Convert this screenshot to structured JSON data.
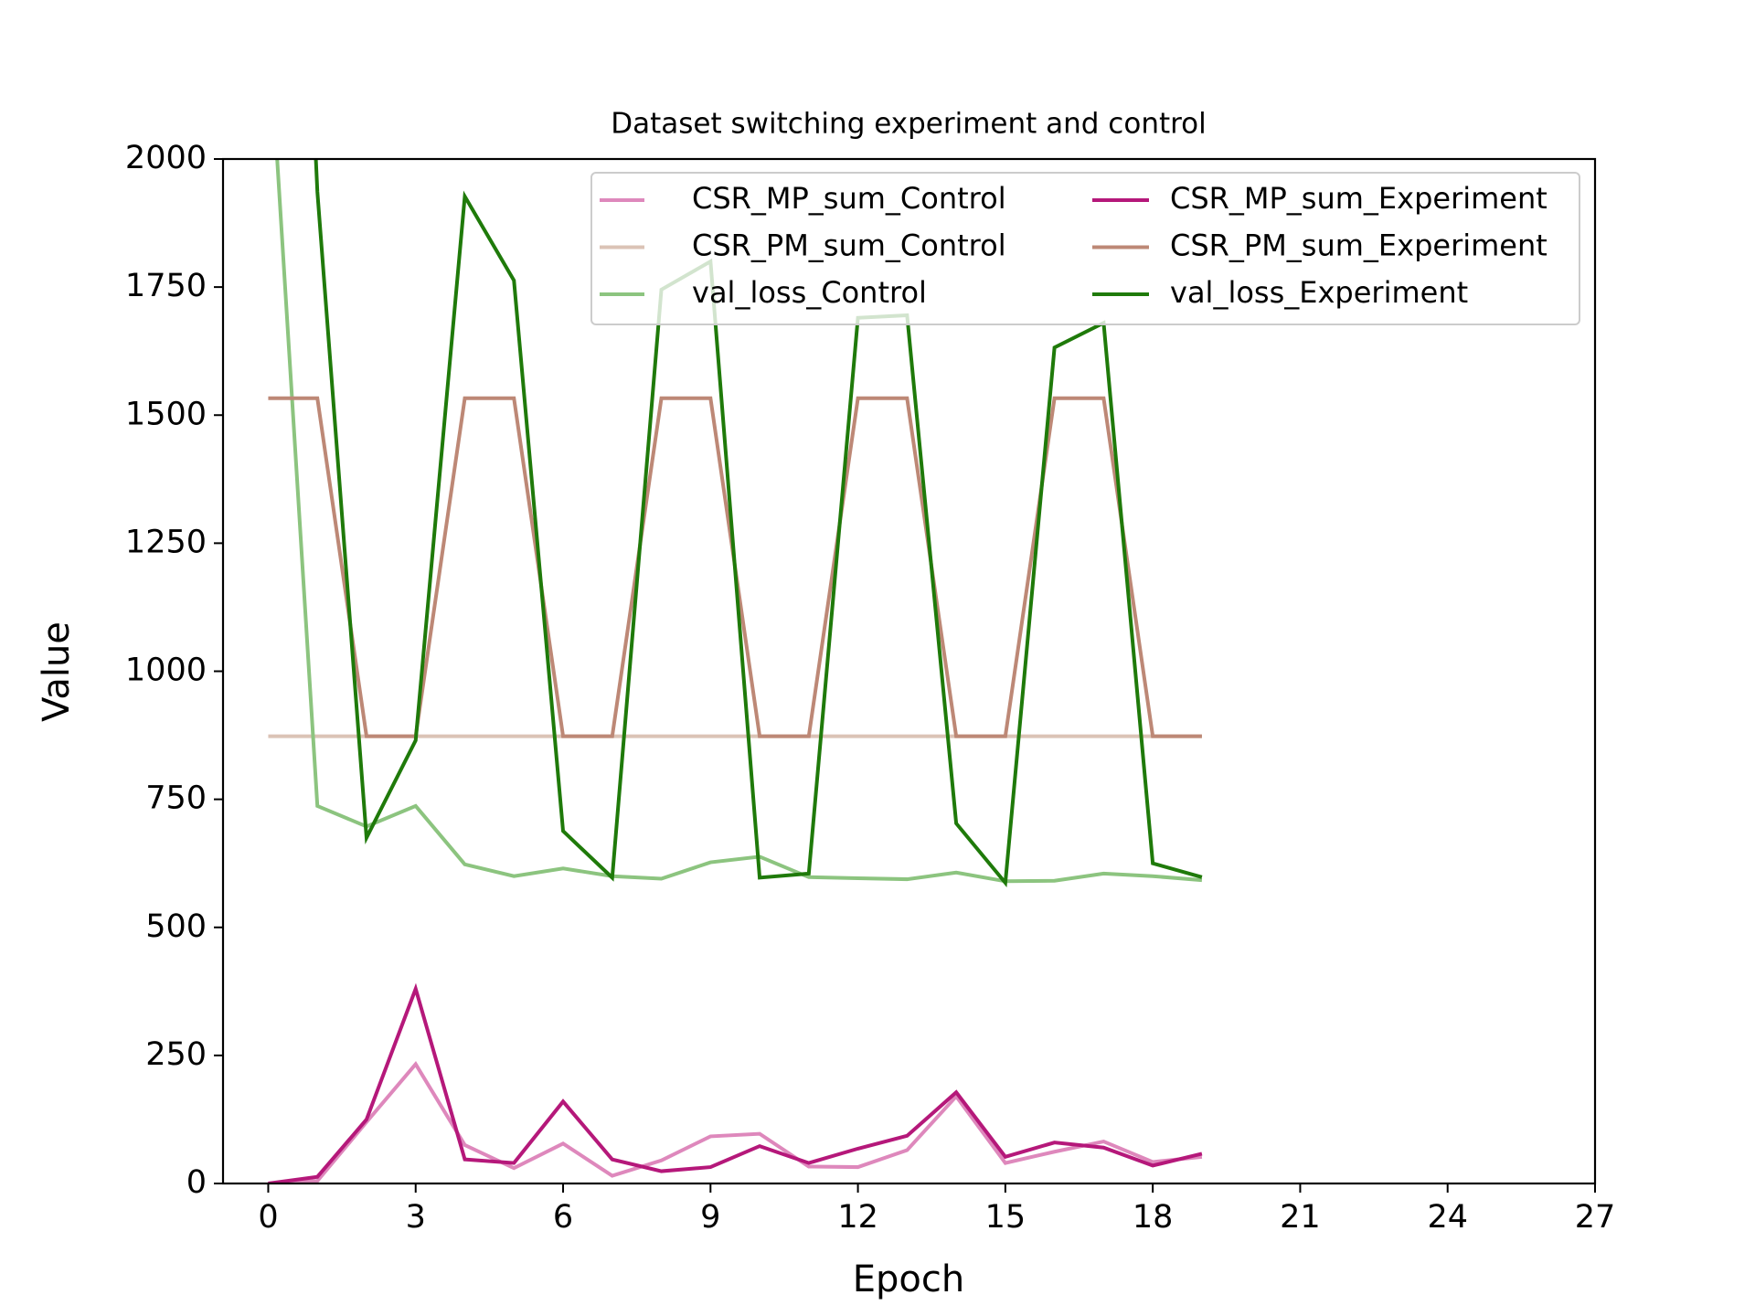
{
  "chart_data": {
    "type": "line",
    "title": "Dataset switching experiment and control",
    "x_label": "Epoch",
    "y_label": "Value",
    "x": [
      0,
      1,
      2,
      3,
      4,
      5,
      6,
      7,
      8,
      9,
      10,
      11,
      12,
      13,
      14,
      15,
      16,
      17,
      18,
      19
    ],
    "series": [
      {
        "name": "CSR_MP_sum_Control",
        "color": "#de88bc",
        "values": [
          0,
          5,
          120,
          233,
          75,
          30,
          78,
          15,
          45,
          92,
          97,
          33,
          32,
          65,
          170,
          40,
          62,
          82,
          42,
          52
        ]
      },
      {
        "name": "CSR_PM_sum_Control",
        "color": "#dbc3b6",
        "values": [
          873,
          873,
          873,
          873,
          873,
          873,
          873,
          873,
          873,
          873,
          873,
          873,
          873,
          873,
          873,
          873,
          873,
          873,
          873,
          873
        ]
      },
      {
        "name": "val_loss_Control",
        "color": "#8cc47f",
        "values": [
          2280,
          737,
          697,
          737,
          623,
          600,
          615,
          600,
          595,
          627,
          638,
          598,
          596,
          594,
          607,
          590,
          591,
          605,
          600,
          592
        ]
      },
      {
        "name": "CSR_MP_sum_Experiment",
        "color": "#b5187a",
        "values": [
          0,
          13,
          125,
          380,
          47,
          40,
          160,
          47,
          24,
          32,
          73,
          40,
          68,
          93,
          178,
          52,
          80,
          70,
          35,
          58
        ]
      },
      {
        "name": "CSR_PM_sum_Experiment",
        "color": "#bd8876",
        "values": [
          1533,
          1533,
          873,
          873,
          1533,
          1533,
          873,
          873,
          1533,
          1533,
          873,
          873,
          1533,
          1533,
          873,
          873,
          1533,
          1533,
          873,
          873
        ]
      },
      {
        "name": "val_loss_Experiment",
        "color": "#1f7a0a",
        "values": [
          4000,
          1936,
          675,
          865,
          1927,
          1763,
          688,
          597,
          1745,
          1800,
          597,
          605,
          1690,
          1695,
          703,
          587,
          1632,
          1680,
          625,
          598
        ]
      }
    ],
    "xlim": [
      -0.92,
      27
    ],
    "xticks": [
      0,
      3,
      6,
      9,
      12,
      15,
      18,
      21,
      24,
      27
    ],
    "ylim": [
      0,
      2000
    ],
    "yticks": [
      0,
      250,
      500,
      750,
      1000,
      1250,
      1500,
      1750,
      2000
    ],
    "legend": "upper right",
    "legend_columns": 2
  }
}
